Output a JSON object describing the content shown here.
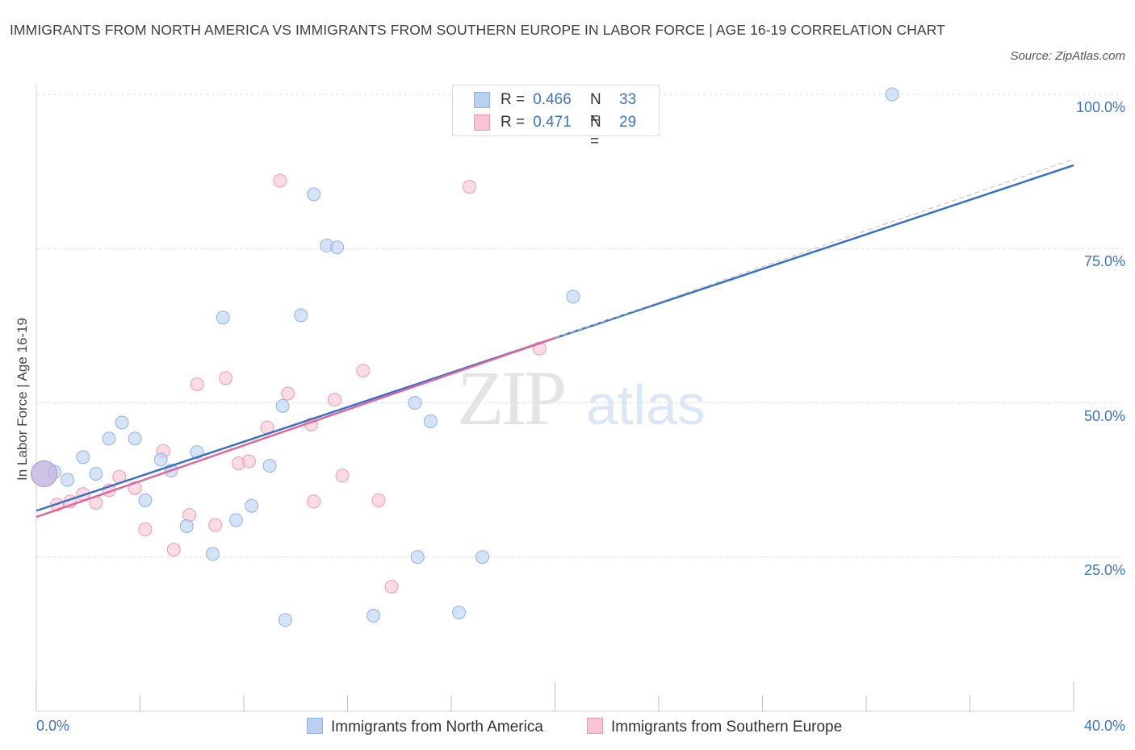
{
  "title": "IMMIGRANTS FROM NORTH AMERICA VS IMMIGRANTS FROM SOUTHERN EUROPE IN LABOR FORCE | AGE 16-19 CORRELATION CHART",
  "source": "Source: ZipAtlas.com",
  "watermark": {
    "zip": "ZIP",
    "atlas": "atlas"
  },
  "legend": {
    "rows": [
      {
        "r_label": "R =",
        "r_value": "0.466",
        "n_label": "N =",
        "n_value": "33"
      },
      {
        "r_label": "R =",
        "r_value": "0.471",
        "n_label": "N =",
        "n_value": "29"
      }
    ]
  },
  "colors": {
    "blue_fill": "#b9d0f2",
    "blue_stroke": "#8fb3e6",
    "blue_line": "#3a6fc9",
    "pink_fill": "#f8c4d4",
    "pink_stroke": "#ee9ab4",
    "pink_line": "#e0679a",
    "axis_text": "#3a74c9",
    "grid": "#e2e2e2"
  },
  "chart_data": {
    "type": "scatter",
    "title": "IMMIGRANTS FROM NORTH AMERICA VS IMMIGRANTS FROM SOUTHERN EUROPE IN LABOR FORCE | AGE 16-19 CORRELATION CHART",
    "xlabel": "",
    "ylabel": "In Labor Force | Age 16-19",
    "xlim": [
      0,
      40
    ],
    "ylim": [
      0,
      105
    ],
    "x_tick_labels": [
      "0.0%",
      "40.0%"
    ],
    "y_ticks": [
      25,
      50,
      75,
      100
    ],
    "y_tick_labels": [
      "25.0%",
      "50.0%",
      "75.0%",
      "100.0%"
    ],
    "grid": true,
    "legend_position": "top-center",
    "series": [
      {
        "name": "Immigrants from North America",
        "color": "#b9d0f2",
        "points": [
          [
            0.3,
            38.5
          ],
          [
            0.7,
            38.8
          ],
          [
            1.2,
            37.5
          ],
          [
            1.8,
            41.2
          ],
          [
            2.3,
            38.5
          ],
          [
            2.8,
            44.2
          ],
          [
            3.3,
            46.8
          ],
          [
            3.8,
            44.2
          ],
          [
            4.2,
            34.2
          ],
          [
            4.8,
            40.8
          ],
          [
            5.2,
            39.0
          ],
          [
            5.8,
            30.0
          ],
          [
            6.2,
            42.0
          ],
          [
            6.8,
            25.5
          ],
          [
            7.2,
            63.8
          ],
          [
            7.7,
            31.0
          ],
          [
            8.3,
            33.3
          ],
          [
            9.0,
            39.8
          ],
          [
            9.5,
            49.5
          ],
          [
            9.6,
            14.8
          ],
          [
            10.2,
            64.2
          ],
          [
            10.7,
            83.8
          ],
          [
            11.2,
            75.5
          ],
          [
            11.6,
            75.2
          ],
          [
            13.0,
            15.5
          ],
          [
            14.6,
            50.0
          ],
          [
            14.7,
            25.0
          ],
          [
            15.2,
            47.0
          ],
          [
            16.3,
            16.0
          ],
          [
            17.2,
            25.0
          ],
          [
            20.7,
            67.2
          ],
          [
            33.0,
            100.0
          ],
          [
            20.7,
            100.0
          ]
        ],
        "trend": [
          [
            0,
            32.5
          ],
          [
            40,
            88.5
          ]
        ]
      },
      {
        "name": "Immigrants from Southern Europe",
        "color": "#f8c4d4",
        "points": [
          [
            0.3,
            38.5
          ],
          [
            0.8,
            33.5
          ],
          [
            1.3,
            34.0
          ],
          [
            1.8,
            35.2
          ],
          [
            2.3,
            33.8
          ],
          [
            2.8,
            35.8
          ],
          [
            3.2,
            38.0
          ],
          [
            3.8,
            36.2
          ],
          [
            4.2,
            29.5
          ],
          [
            4.9,
            42.2
          ],
          [
            5.3,
            26.2
          ],
          [
            5.9,
            31.8
          ],
          [
            6.2,
            53.0
          ],
          [
            6.9,
            30.2
          ],
          [
            7.3,
            54.0
          ],
          [
            7.8,
            40.2
          ],
          [
            8.2,
            40.5
          ],
          [
            8.9,
            46.0
          ],
          [
            9.4,
            86.0
          ],
          [
            9.7,
            51.5
          ],
          [
            10.6,
            46.5
          ],
          [
            10.7,
            34.0
          ],
          [
            11.5,
            50.5
          ],
          [
            11.8,
            38.2
          ],
          [
            12.6,
            55.2
          ],
          [
            13.2,
            34.2
          ],
          [
            13.7,
            20.2
          ],
          [
            16.7,
            85.0
          ],
          [
            19.4,
            58.8
          ]
        ],
        "trend": [
          [
            0,
            31.5
          ],
          [
            20,
            60.5
          ]
        ]
      }
    ]
  }
}
